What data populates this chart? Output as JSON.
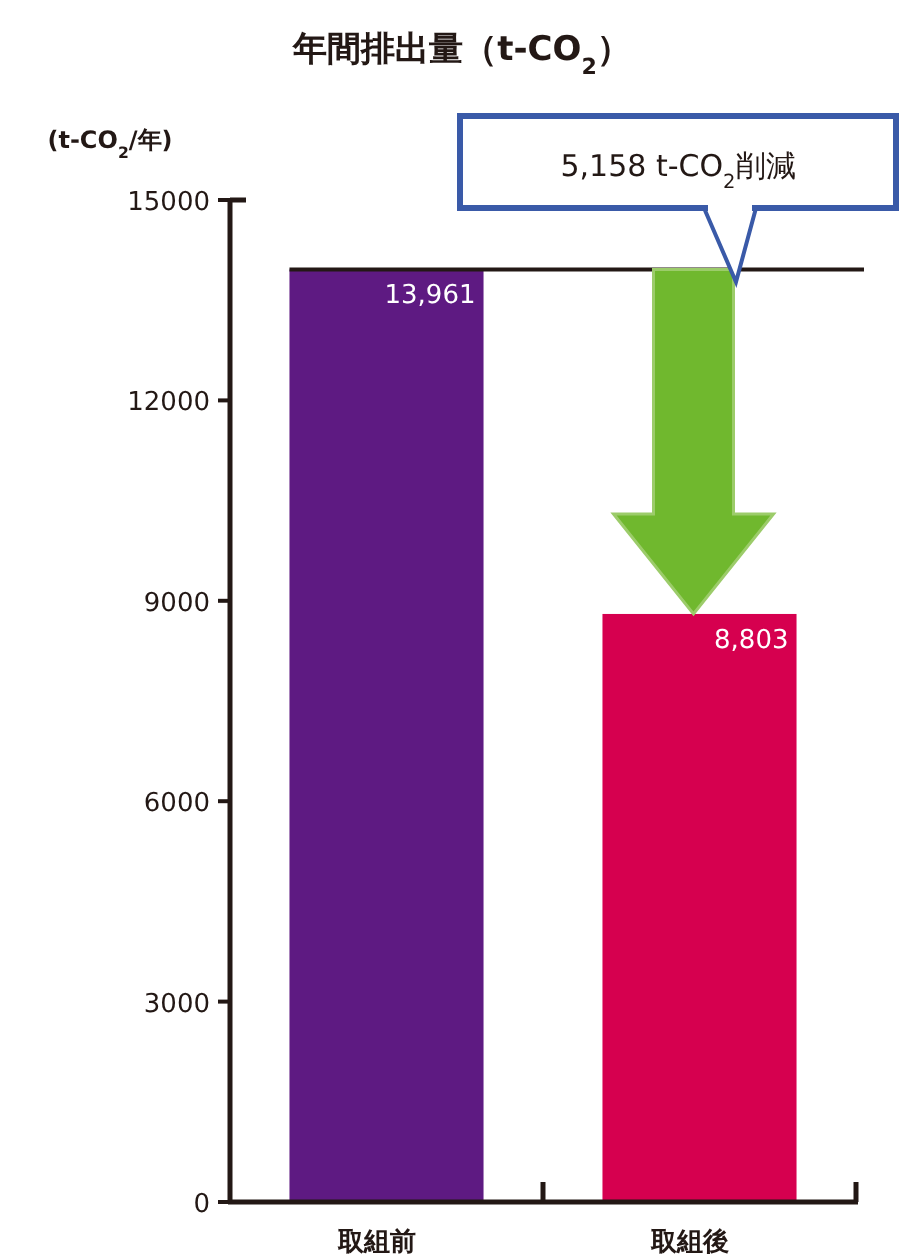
{
  "chart_data": {
    "type": "bar",
    "title": "年間排出量（t-CO$_{2}$）",
    "ylabel": "(t-CO$_{2}$/年)",
    "categories": [
      "取組前",
      "取組後"
    ],
    "values": [
      13961,
      8803
    ],
    "value_labels": [
      "13,961",
      "8,803"
    ],
    "colors": [
      "#5e1a82",
      "#d6004f"
    ],
    "ylim": [
      0,
      15000
    ],
    "yticks": [
      0,
      3000,
      6000,
      9000,
      12000,
      15000
    ],
    "ref_lines": [
      {
        "axis": "y",
        "value": 13961,
        "color": "#231815"
      }
    ],
    "annotations": [
      "5,158 t-CO$_{2}$削減"
    ],
    "grid": false
  }
}
